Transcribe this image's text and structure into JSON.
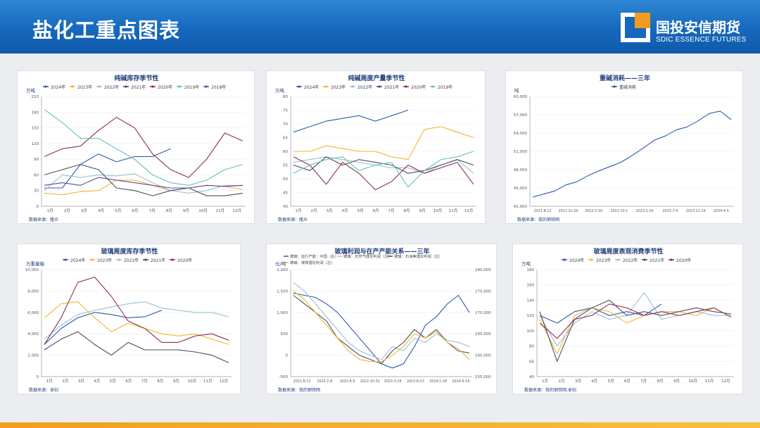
{
  "header": {
    "title": "盐化工重点图表",
    "logo_cn": "国投安信期货",
    "logo_en": "SDIC ESSENCE FUTURES",
    "accent": "#f29c1f"
  },
  "charts": [
    {
      "type": "line",
      "title": "纯碱库存季节性",
      "unit": "万吨",
      "source": "数据来源：隆众",
      "x_labels": [
        "1月",
        "2月",
        "3月",
        "4月",
        "5月",
        "6月",
        "7月",
        "8月",
        "9月",
        "10月",
        "11月",
        "12月"
      ],
      "ylim": [
        0,
        210
      ],
      "y_ticks": [
        0,
        30,
        60,
        90,
        120,
        150,
        180,
        210
      ],
      "series": [
        {
          "name": "2024年",
          "color": "#2e5aa8",
          "values": [
            35,
            35,
            80,
            100,
            85,
            95,
            95,
            110,
            null,
            null,
            null,
            null
          ]
        },
        {
          "name": "2023年",
          "color": "#f2b632",
          "values": [
            25,
            22,
            28,
            30,
            50,
            50,
            40,
            30,
            35,
            40,
            38,
            32
          ]
        },
        {
          "name": "2022年",
          "color": "#9bbfd6",
          "values": [
            30,
            60,
            55,
            60,
            58,
            62,
            45,
            30,
            25,
            30,
            40,
            40
          ]
        },
        {
          "name": "2021年",
          "color": "#4d4d5c",
          "values": [
            60,
            70,
            80,
            70,
            35,
            30,
            20,
            30,
            35,
            20,
            20,
            25
          ]
        },
        {
          "name": "2020年",
          "color": "#8c2f4f",
          "values": [
            95,
            110,
            115,
            145,
            170,
            150,
            100,
            70,
            55,
            90,
            140,
            125
          ]
        },
        {
          "name": "2019年",
          "color": "#67c2b5",
          "values": [
            185,
            160,
            130,
            130,
            110,
            90,
            60,
            45,
            40,
            50,
            70,
            80
          ]
        },
        {
          "name": "2018年",
          "color": "#5b4aa0",
          "values": [
            40,
            45,
            40,
            55,
            50,
            45,
            40,
            35,
            35,
            40,
            38,
            40
          ]
        }
      ]
    },
    {
      "type": "line",
      "title": "纯碱周度产量季节性",
      "unit": "万吨",
      "source": "数据来源：隆众",
      "x_labels": [
        "1月",
        "2月",
        "3月",
        "4月",
        "5月",
        "6月",
        "7月",
        "8月",
        "9月",
        "10月",
        "11月",
        "12月"
      ],
      "ylim": [
        40,
        80
      ],
      "y_ticks": [
        40,
        45,
        50,
        55,
        60,
        65,
        70,
        75,
        80
      ],
      "series": [
        {
          "name": "2024年",
          "color": "#2e5aa8",
          "values": [
            67,
            69,
            71,
            72,
            73,
            71,
            73,
            75,
            null,
            null,
            null,
            null
          ]
        },
        {
          "name": "2023年",
          "color": "#f2b632",
          "values": [
            60,
            60,
            62,
            61,
            60,
            60,
            58,
            57,
            68,
            69,
            67,
            65
          ]
        },
        {
          "name": "2022年",
          "color": "#9bbfd6",
          "values": [
            56,
            57,
            58,
            57,
            56,
            55,
            54,
            54,
            52,
            55,
            57,
            52
          ]
        },
        {
          "name": "2021年",
          "color": "#4d4d5c",
          "values": [
            55,
            53,
            58,
            55,
            57,
            56,
            55,
            52,
            53,
            55,
            57,
            55
          ]
        },
        {
          "name": "2020年",
          "color": "#8c2f4f",
          "values": [
            58,
            55,
            48,
            56,
            52,
            46,
            49,
            55,
            52,
            54,
            56,
            48
          ]
        },
        {
          "name": "2019年",
          "color": "#67c2b5",
          "values": [
            52,
            55,
            57,
            58,
            53,
            55,
            56,
            47,
            53,
            57,
            58,
            60
          ]
        }
      ]
    },
    {
      "type": "line",
      "title": "重碱消耗——三年",
      "unit": "吨",
      "source": "数据来源：我的钢铁网",
      "x_labels": [
        "2021-8-12",
        "2021-12-29",
        "2022-5-16",
        "2022-10-1",
        "2023-2-16",
        "2023-7-4",
        "2023-11-19",
        "2024-4-5"
      ],
      "ylim": [
        42000,
        60000
      ],
      "y_ticks": [
        42000,
        45000,
        48000,
        51000,
        54000,
        57000,
        60000
      ],
      "series": [
        {
          "name": "重碱消耗",
          "color": "#2e5aa8",
          "values": [
            43500,
            44000,
            44500,
            45500,
            46000,
            47000,
            47800,
            48500,
            49200,
            50300,
            51500,
            52800,
            53500,
            54500,
            55000,
            56000,
            57200,
            57600,
            56200
          ]
        }
      ]
    },
    {
      "type": "line",
      "title": "玻璃周度库存季节性",
      "unit": "万重量箱",
      "source": "数据来源：卓创",
      "x_labels": [
        "1月",
        "2月",
        "3月",
        "4月",
        "5月",
        "6月",
        "7月",
        "8月",
        "9月",
        "10月",
        "11月",
        "12月"
      ],
      "ylim": [
        0,
        10000
      ],
      "y_ticks": [
        0,
        2000,
        4000,
        6000,
        8000,
        10000
      ],
      "series": [
        {
          "name": "2024年",
          "color": "#2e5aa8",
          "values": [
            3000,
            4500,
            5500,
            6000,
            5800,
            5500,
            5600,
            6200,
            null,
            null,
            null,
            null
          ]
        },
        {
          "name": "2023年",
          "color": "#f2b632",
          "values": [
            5500,
            6800,
            7000,
            5500,
            4200,
            5000,
            4500,
            4000,
            3800,
            4000,
            3500,
            3000
          ]
        },
        {
          "name": "2022年",
          "color": "#9bbfd6",
          "values": [
            3500,
            4800,
            5800,
            6200,
            6500,
            6800,
            7000,
            6400,
            6200,
            6000,
            6000,
            5600
          ]
        },
        {
          "name": "2021年",
          "color": "#4d4d5c",
          "values": [
            2500,
            3500,
            4200,
            3000,
            2000,
            3200,
            2500,
            2500,
            2500,
            2300,
            2000,
            1300
          ]
        },
        {
          "name": "2020年",
          "color": "#8c2f4f",
          "values": [
            3000,
            5500,
            8800,
            9300,
            7500,
            5200,
            4500,
            3200,
            3200,
            3800,
            4000,
            3400
          ]
        }
      ]
    },
    {
      "type": "line",
      "title": "玻璃利润与在产产能关系——三年",
      "unit": "元/吨",
      "source": "数据来源：我的钢铁网",
      "x_labels": [
        "2021-8-12",
        "2022-1-8",
        "2022-6-5",
        "2022-10-31",
        "2023-3-28",
        "2023-8-23",
        "2024-1-18",
        "2024-6-14"
      ],
      "ylim": [
        -500,
        2000
      ],
      "y_ticks": [
        -500,
        0,
        500,
        1000,
        1500,
        2000
      ],
      "y2lim": [
        155000,
        180000
      ],
      "y2_ticks": [
        155000,
        160000,
        165000,
        170000,
        175000,
        180000
      ],
      "series": [
        {
          "name": "玻璃：运行产能：中国（右）",
          "color": "#2e5aa8",
          "axis": "right",
          "values": [
            174500,
            174000,
            173500,
            172000,
            170000,
            167000,
            164000,
            161000,
            158000,
            157000,
            158000,
            162000,
            167000,
            169000,
            172000,
            174000,
            170000
          ]
        },
        {
          "name": "玻璃：天然气理论利润（左）",
          "color": "#9bbfd6",
          "axis": "left",
          "values": [
            1700,
            1500,
            1200,
            900,
            600,
            300,
            100,
            0,
            -100,
            200,
            100,
            400,
            300,
            500,
            350,
            300,
            200
          ]
        },
        {
          "name": "玻璃：石油焦理论利润（左）",
          "color": "#4d4d5c",
          "axis": "left",
          "values": [
            1400,
            1200,
            1000,
            800,
            400,
            200,
            0,
            -100,
            -200,
            100,
            300,
            600,
            400,
            600,
            300,
            100,
            50
          ]
        },
        {
          "name": "玻璃：煤炭理论利润（左）",
          "color": "#f2b632",
          "axis": "left",
          "values": [
            1500,
            1300,
            1000,
            700,
            400,
            100,
            -100,
            -150,
            -150,
            0,
            200,
            500,
            400,
            550,
            300,
            150,
            -100
          ]
        }
      ]
    },
    {
      "type": "line",
      "title": "玻璃周度表观消费季节性",
      "unit": "万吨",
      "source": "数据来源：我的钢铁网,卓创",
      "x_labels": [
        "1月",
        "2月",
        "3月",
        "4月",
        "5月",
        "6月",
        "7月",
        "8月",
        "9月",
        "10月",
        "11月",
        "12月"
      ],
      "ylim": [
        40,
        180
      ],
      "y_ticks": [
        40,
        60,
        80,
        100,
        120,
        140,
        160,
        180
      ],
      "series": [
        {
          "name": "2024年",
          "color": "#2e5aa8",
          "values": [
            120,
            110,
            125,
            130,
            120,
            125,
            120,
            135,
            null,
            null,
            null,
            null
          ]
        },
        {
          "name": "2023年",
          "color": "#f2b632",
          "values": [
            115,
            70,
            120,
            130,
            125,
            110,
            120,
            125,
            125,
            120,
            130,
            118
          ]
        },
        {
          "name": "2022年",
          "color": "#9bbfd6",
          "values": [
            120,
            80,
            110,
            125,
            115,
            120,
            150,
            115,
            120,
            125,
            120,
            120
          ]
        },
        {
          "name": "2021年",
          "color": "#4d4d5c",
          "values": [
            125,
            60,
            115,
            130,
            140,
            120,
            125,
            120,
            125,
            130,
            125,
            122
          ]
        },
        {
          "name": "2020年",
          "color": "#8c2f4f",
          "values": [
            110,
            90,
            115,
            120,
            135,
            130,
            120,
            125,
            120,
            125,
            130,
            118
          ]
        }
      ]
    }
  ],
  "chart_data": [
    {
      "type": "line",
      "title": "纯碱库存季节性"
    },
    {
      "type": "line",
      "title": "纯碱周度产量季节性"
    },
    {
      "type": "line",
      "title": "重碱消耗——三年"
    },
    {
      "type": "line",
      "title": "玻璃周度库存季节性"
    },
    {
      "type": "line",
      "title": "玻璃利润与在产产能关系——三年"
    },
    {
      "type": "line",
      "title": "玻璃周度表观消费季节性"
    }
  ]
}
